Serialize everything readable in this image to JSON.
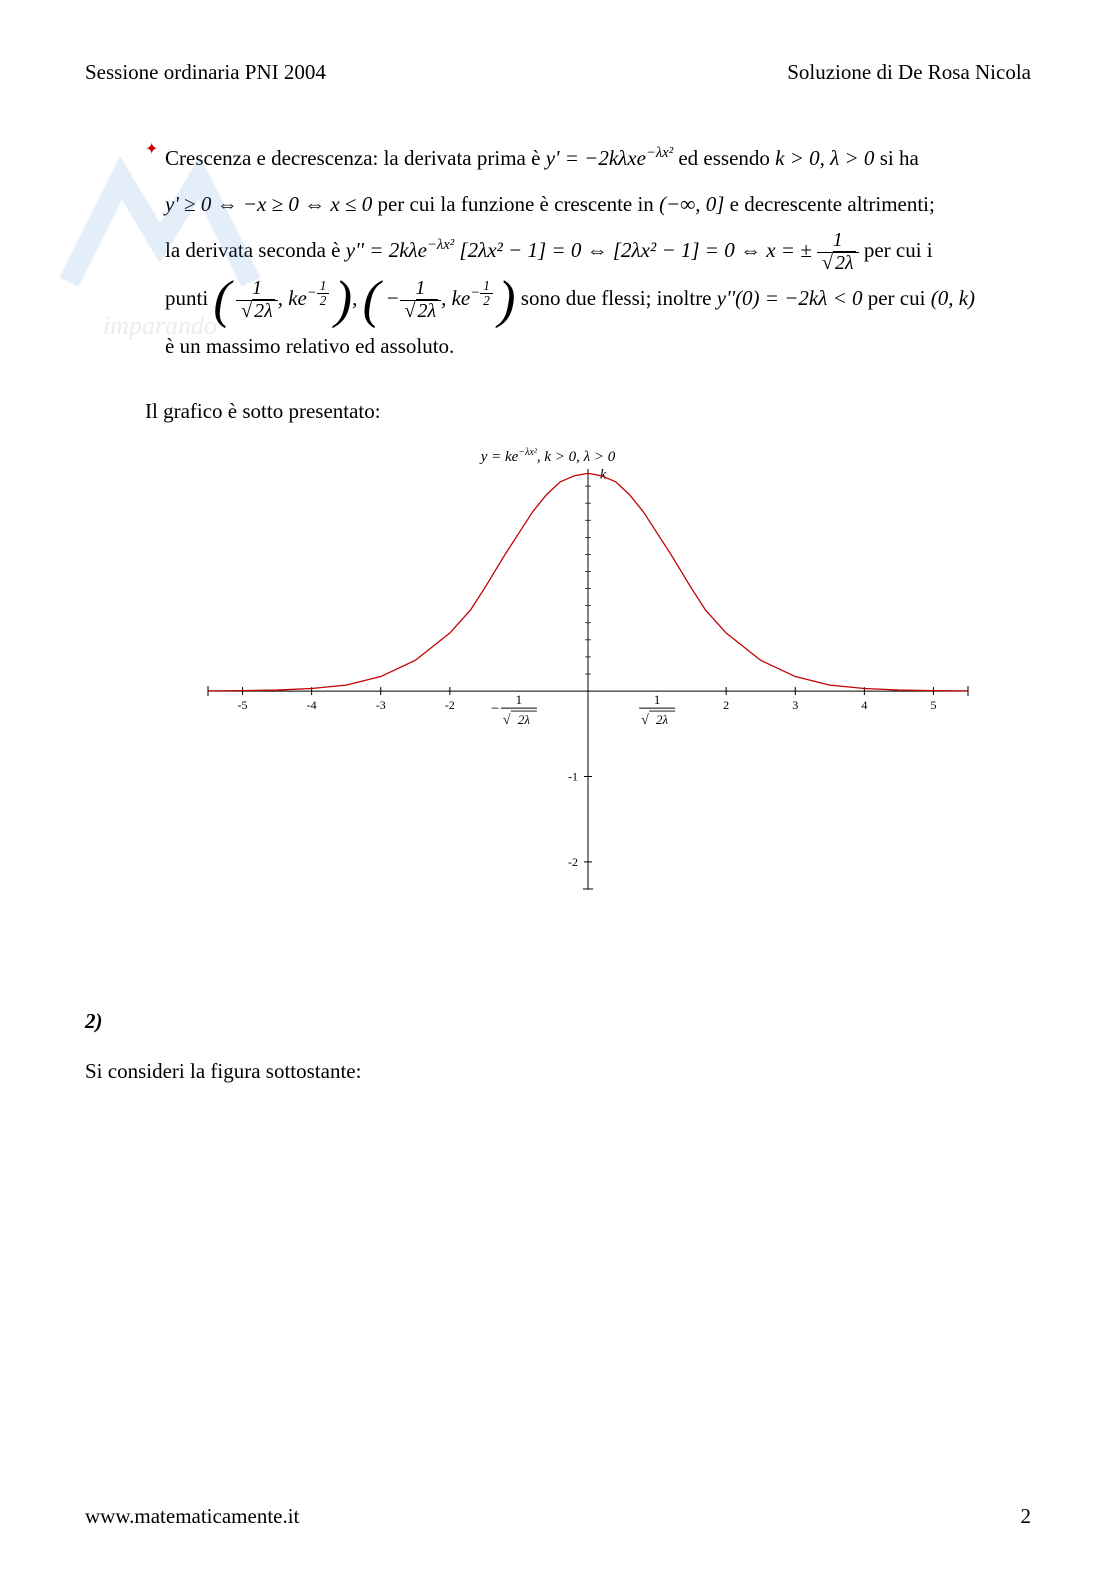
{
  "header": {
    "left": "Sessione ordinaria PNI 2004",
    "right": "Soluzione di De Rosa Nicola"
  },
  "bullet": {
    "label": "Crescenza e decrescenza:",
    "text_before_deriv": " la derivata prima è ",
    "deriv1": "y' = −2kλxe",
    "deriv1_exp": "−λx²",
    "text_after_deriv": " ed essendo ",
    "cond1": "k > 0, λ > 0",
    "text_siha": " si ha",
    "line2_a": "y' ≥ 0 ⇔ −x ≥ 0 ⇔ x ≤ 0",
    "line2_b": " per cui la funzione è crescente in ",
    "interval": "(−∞, 0]",
    "line2_c": " e decrescente altrimenti;",
    "line3_a": "la derivata seconda è ",
    "deriv2_a": "y'' = 2kλe",
    "deriv2_exp": "−λx²",
    "deriv2_b": "[2λx² − 1] = 0 ⇔ [2λx² − 1] = 0 ⇔ x = ±",
    "line3_b": " per cui i",
    "line4_a": "punti ",
    "line4_b": " sono due flessi; inoltre ",
    "deriv2_zero": "y''(0) = −2kλ < 0",
    "line4_c": " per cui ",
    "point0k": "(0, k)",
    "line5": "è un massimo relativo ed assoluto."
  },
  "graph_intro": "Il grafico è sotto presentato:",
  "chart": {
    "type": "line",
    "title": "y = ke",
    "title_exp": "−λx²",
    "title_cond": ", k > 0, λ > 0",
    "curve_color": "#c00000",
    "axis_color": "#000000",
    "tick_color": "#000000",
    "background_color": "#ffffff",
    "x_range": [
      -5.5,
      5.5
    ],
    "y_range": [
      -2.2,
      2.6
    ],
    "x_ticks": [
      -5,
      -4,
      -3,
      -2,
      2,
      3,
      4,
      5
    ],
    "y_ticks": [
      -1,
      -2
    ],
    "x_special_neg": "− 1/√(2λ)",
    "x_special_pos": "1/√(2λ)",
    "k_label": "k",
    "curve_points": [
      [
        -5.5,
        0.002
      ],
      [
        -5,
        0.005
      ],
      [
        -4.5,
        0.012
      ],
      [
        -4,
        0.03
      ],
      [
        -3.5,
        0.07
      ],
      [
        -3,
        0.17
      ],
      [
        -2.5,
        0.36
      ],
      [
        -2,
        0.68
      ],
      [
        -1.7,
        0.95
      ],
      [
        -1.5,
        1.2
      ],
      [
        -1.2,
        1.6
      ],
      [
        -1,
        1.85
      ],
      [
        -0.8,
        2.1
      ],
      [
        -0.6,
        2.3
      ],
      [
        -0.4,
        2.45
      ],
      [
        -0.2,
        2.52
      ],
      [
        0,
        2.55
      ],
      [
        0.2,
        2.52
      ],
      [
        0.4,
        2.45
      ],
      [
        0.6,
        2.3
      ],
      [
        0.8,
        2.1
      ],
      [
        1,
        1.85
      ],
      [
        1.2,
        1.6
      ],
      [
        1.5,
        1.2
      ],
      [
        1.7,
        0.95
      ],
      [
        2,
        0.68
      ],
      [
        2.5,
        0.36
      ],
      [
        3,
        0.17
      ],
      [
        3.5,
        0.07
      ],
      [
        4,
        0.03
      ],
      [
        4.5,
        0.012
      ],
      [
        5,
        0.005
      ],
      [
        5.5,
        0.002
      ]
    ],
    "line_width": 1.3,
    "tick_fontsize": 12,
    "title_fontsize": 15
  },
  "section2": {
    "num": "2)",
    "text": "Si consideri la figura sottostante:"
  },
  "footer": {
    "url": "www.matematicamente.it",
    "page": "2"
  },
  "frac_1_sqrt2l_num": "1",
  "frac_1_sqrt2l_den": "2λ",
  "ke_half_num": "1",
  "ke_half_den": "2"
}
